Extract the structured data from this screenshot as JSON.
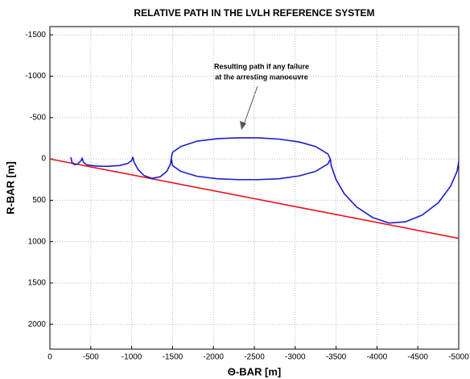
{
  "chart_data": {
    "type": "line",
    "title": "RELATIVE PATH IN THE LVLH REFERENCE SYSTEM",
    "xlabel": "Θ-BAR [m]",
    "ylabel": "R-BAR [m]",
    "annotation": [
      "Resulting path if any failure",
      "at the  arresting manoeuvre"
    ],
    "xlim": [
      0,
      -5000
    ],
    "xticks": [
      0,
      -500,
      -1000,
      -1500,
      -2000,
      -2500,
      -3000,
      -3500,
      -4000,
      -4500,
      -5000
    ],
    "ylim": [
      2300,
      -1600
    ],
    "yticks": [
      -1500,
      -1000,
      -500,
      0,
      500,
      1000,
      1500,
      2000
    ],
    "grid": true,
    "series": [
      {
        "color": "#e8141c",
        "x": [
          0,
          -5000
        ],
        "values": [
          0,
          960
        ]
      },
      {
        "color": "#1c1ccc",
        "x": [
          -256,
          -270,
          -300,
          -340,
          -380,
          -394,
          -410,
          -450,
          -550,
          -700,
          -850,
          -950,
          -1000,
          -1014,
          -1030,
          -1080,
          -1150,
          -1250,
          -1350,
          -1430,
          -1475,
          -1486,
          -1500,
          -1600,
          -1800,
          -2050,
          -2300,
          -2550,
          -2800,
          -3050,
          -3250,
          -3400,
          -3430,
          -3440,
          -3500,
          -3600,
          -3750,
          -3950,
          -4150,
          -4350,
          -4550,
          -4750,
          -4900,
          -4980,
          -5000,
          null,
          -3430,
          -3400,
          -3250,
          -3050,
          -2800,
          -2550,
          -2300,
          -2050,
          -1800,
          -1600,
          -1500,
          -1486
        ],
        "values": [
          -20,
          40,
          70,
          60,
          20,
          -10,
          40,
          70,
          85,
          90,
          80,
          55,
          20,
          -20,
          40,
          130,
          200,
          235,
          215,
          150,
          60,
          -20,
          -80,
          -150,
          -215,
          -245,
          -255,
          -255,
          -240,
          -205,
          -150,
          -60,
          0,
          80,
          250,
          420,
          580,
          710,
          775,
          760,
          680,
          530,
          330,
          150,
          30,
          null,
          0,
          60,
          150,
          205,
          240,
          250,
          250,
          240,
          210,
          150,
          80,
          0
        ]
      }
    ]
  }
}
